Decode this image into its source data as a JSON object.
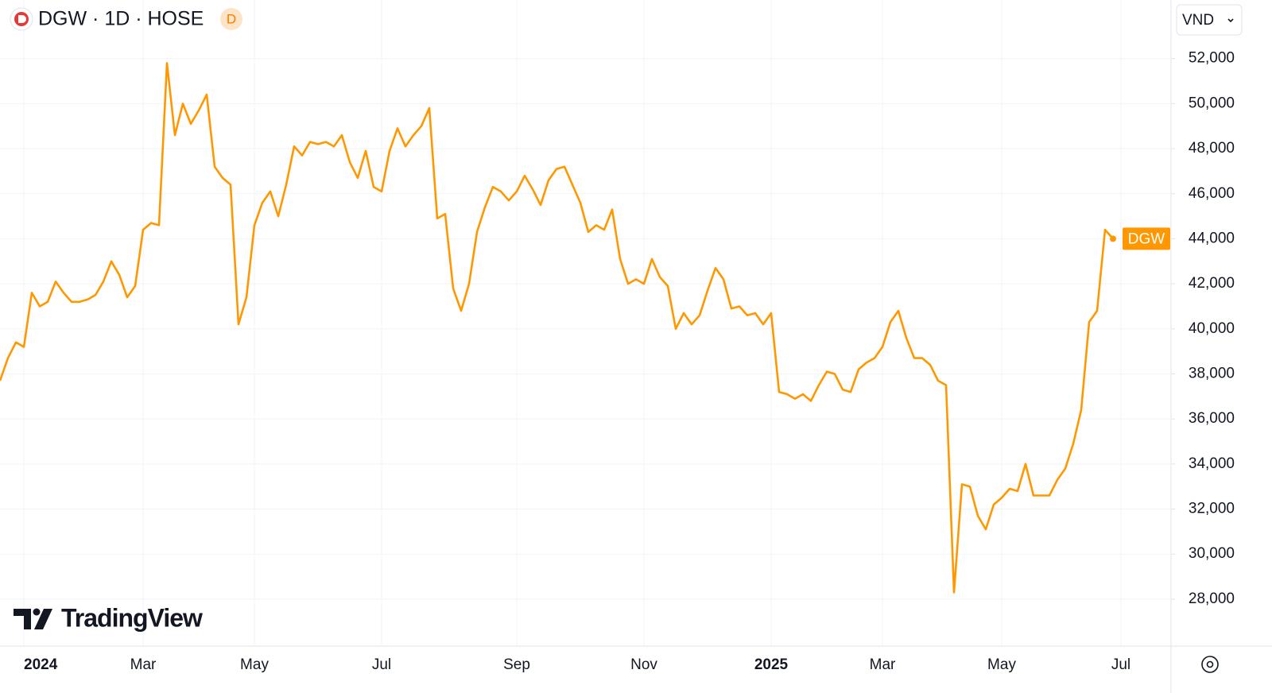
{
  "chart_data": {
    "type": "line",
    "title": "DGW · 1D · HOSE",
    "badge": "D",
    "currency": "VND",
    "branding": "TradingView",
    "categories": [
      null,
      null,
      null,
      "2024",
      null,
      null,
      null,
      null,
      null,
      null,
      null,
      null,
      null,
      null,
      null,
      null,
      null,
      null,
      "Mar",
      null,
      null,
      null,
      null,
      null,
      null,
      null,
      null,
      null,
      null,
      null,
      null,
      null,
      "May",
      null,
      null,
      null,
      null,
      null,
      null,
      null,
      null,
      null,
      null,
      null,
      null,
      null,
      null,
      null,
      "Jul",
      null,
      null,
      null,
      null,
      null,
      null,
      null,
      null,
      null,
      null,
      null,
      null,
      null,
      null,
      null,
      null,
      "Sep",
      null,
      null,
      null,
      null,
      null,
      null,
      null,
      null,
      null,
      null,
      null,
      null,
      null,
      null,
      null,
      "Nov",
      null,
      null,
      null,
      null,
      null,
      null,
      null,
      null,
      null,
      null,
      null,
      null,
      null,
      null,
      null,
      "2025",
      null,
      null,
      null,
      null,
      null,
      null,
      null,
      null,
      null,
      null,
      null,
      null,
      null,
      "Mar",
      null,
      null,
      null,
      null,
      null,
      null,
      null,
      null,
      null,
      null,
      null,
      null,
      null,
      null,
      "May",
      null,
      null,
      null,
      null,
      null,
      null,
      null,
      null,
      null,
      null,
      null,
      null,
      null,
      null,
      "Jul"
    ],
    "series": [
      {
        "name": "DGW",
        "color": "#ff9800",
        "values": [
          37700,
          38700,
          39400,
          39200,
          41600,
          41000,
          41200,
          42100,
          41600,
          41200,
          41200,
          41300,
          41500,
          42100,
          43000,
          42400,
          41400,
          41900,
          44400,
          44700,
          44600,
          51800,
          48600,
          50000,
          49100,
          49700,
          50400,
          47200,
          46700,
          46400,
          40200,
          41400,
          44600,
          45600,
          46100,
          45000,
          46400,
          48100,
          47700,
          48300,
          48200,
          48300,
          48100,
          48600,
          47400,
          46700,
          47900,
          46300,
          46100,
          47900,
          48900,
          48100,
          48600,
          49000,
          49800,
          44900,
          45100,
          41800,
          40800,
          42000,
          44300,
          45400,
          46300,
          46100,
          45700,
          46100,
          46800,
          46200,
          45500,
          46600,
          47100,
          47200,
          46400,
          45600,
          44300,
          44600,
          44400,
          45300,
          43100,
          42000,
          42200,
          42000,
          43100,
          42300,
          41900,
          40000,
          40700,
          40200,
          40600,
          41700,
          42700,
          42200,
          40900,
          41000,
          40600,
          40700,
          40200,
          40700,
          37200,
          37100,
          36900,
          37100,
          36800,
          37500,
          38100,
          38000,
          37300,
          37200,
          38200,
          38500,
          38700,
          39200,
          40300,
          40800,
          39600,
          38700,
          38700,
          38400,
          37700,
          37500,
          28300,
          33100,
          33000,
          31700,
          31100,
          32200,
          32500,
          32900,
          32800,
          34000,
          32600,
          32600,
          32600,
          33300,
          33800,
          34900,
          36400,
          40300,
          40800,
          44400,
          44000,
          null
        ]
      }
    ],
    "ylim": [
      25950,
      54600
    ],
    "yticks": [
      {
        "value": 28000,
        "label": "28,000"
      },
      {
        "value": 30000,
        "label": "30,000"
      },
      {
        "value": 32000,
        "label": "32,000"
      },
      {
        "value": 34000,
        "label": "34,000"
      },
      {
        "value": 36000,
        "label": "36,000"
      },
      {
        "value": 38000,
        "label": "38,000"
      },
      {
        "value": 40000,
        "label": "40,000"
      },
      {
        "value": 42000,
        "label": "42,000"
      },
      {
        "value": 44000,
        "label": "44,000"
      },
      {
        "value": 46000,
        "label": "46,000"
      },
      {
        "value": 48000,
        "label": "48,000"
      },
      {
        "value": 50000,
        "label": "50,000"
      },
      {
        "value": 52000,
        "label": "52,000"
      }
    ],
    "grid": true
  }
}
